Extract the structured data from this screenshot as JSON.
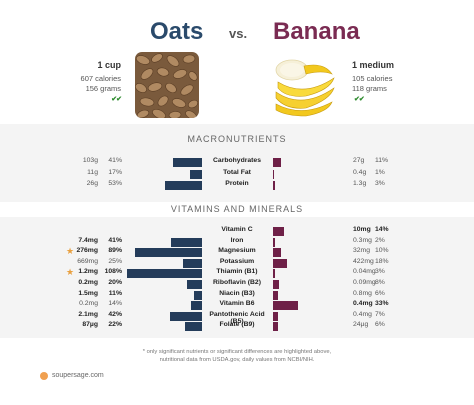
{
  "header": {
    "left_title": "Oats",
    "vs": "vs.",
    "right_title": "Banana"
  },
  "left_food": {
    "serving": "1 cup",
    "calories": "607 calories",
    "grams": "156 grams",
    "checks": "✔✔",
    "image_icon": "oats-image"
  },
  "right_food": {
    "serving": "1 medium",
    "calories": "105 calories",
    "grams": "118 grams",
    "checks": "✔✔",
    "image_icon": "banana-image"
  },
  "sections": {
    "macros_title": "MACRONUTRIENTS",
    "vitamins_title": "VITAMINS AND MINERALS"
  },
  "macros": [
    {
      "name": "Carbohydrates",
      "lv": "103g",
      "lp": "41%",
      "rv": "27g",
      "rp": "11%",
      "lfrac": 0.41,
      "rfrac": 0.11
    },
    {
      "name": "Total Fat",
      "lv": "11g",
      "lp": "17%",
      "rv": "0.4g",
      "rp": "1%",
      "lfrac": 0.17,
      "rfrac": 0.01
    },
    {
      "name": "Protein",
      "lv": "26g",
      "lp": "53%",
      "rv": "1.3g",
      "rp": "3%",
      "lfrac": 0.53,
      "rfrac": 0.03
    }
  ],
  "vitamins": [
    {
      "name": "Vitamin C",
      "lv": "",
      "lp": "",
      "rv": "10mg",
      "rp": "14%",
      "lfrac": 0,
      "rfrac": 0.14,
      "rbold": true
    },
    {
      "name": "Iron",
      "lv": "7.4mg",
      "lp": "41%",
      "rv": "0.3mg",
      "rp": "2%",
      "lfrac": 0.41,
      "rfrac": 0.02,
      "lbold": true
    },
    {
      "name": "Magnesium",
      "lv": "276mg",
      "lp": "89%",
      "rv": "32mg",
      "rp": "10%",
      "lfrac": 0.89,
      "rfrac": 0.1,
      "lbold": true,
      "star": true
    },
    {
      "name": "Potassium",
      "lv": "669mg",
      "lp": "25%",
      "rv": "422mg",
      "rp": "18%",
      "lfrac": 0.25,
      "rfrac": 0.18
    },
    {
      "name": "Thiamin (B1)",
      "lv": "1.2mg",
      "lp": "108%",
      "rv": "0.04mg",
      "rp": "3%",
      "lfrac": 1.0,
      "rfrac": 0.03,
      "lbold": true,
      "star": true
    },
    {
      "name": "Riboflavin (B2)",
      "lv": "0.2mg",
      "lp": "20%",
      "rv": "0.09mg",
      "rp": "8%",
      "lfrac": 0.2,
      "rfrac": 0.08,
      "lbold": true
    },
    {
      "name": "Niacin (B3)",
      "lv": "1.5mg",
      "lp": "11%",
      "rv": "0.8mg",
      "rp": "6%",
      "lfrac": 0.11,
      "rfrac": 0.06,
      "lbold": true
    },
    {
      "name": "Vitamin B6",
      "lv": "0.2mg",
      "lp": "14%",
      "rv": "0.4mg",
      "rp": "33%",
      "lfrac": 0.14,
      "rfrac": 0.33,
      "rbold": true
    },
    {
      "name": "Pantothenic Acid (B5)",
      "lv": "2.1mg",
      "lp": "42%",
      "rv": "0.4mg",
      "rp": "7%",
      "lfrac": 0.42,
      "rfrac": 0.07,
      "lbold": true
    },
    {
      "name": "Folate (B9)",
      "lv": "87µg",
      "lp": "22%",
      "rv": "24µg",
      "rp": "6%",
      "lfrac": 0.22,
      "rfrac": 0.06,
      "lbold": true
    }
  ],
  "notes": {
    "line1": "* only significant nutrients or significant differences are highlighted above,",
    "line2": "nutritional data from USDA.gov, daily values from NCBI/NIH."
  },
  "footer": {
    "site": "soupersage.com",
    "icon": "soupersage-logo-icon"
  },
  "colors": {
    "left_bar": "#243c5a",
    "right_bar": "#6e2047",
    "left_title": "#2a4a6b",
    "right_title": "#7a2b52",
    "star": "#e8a040",
    "check": "#2e8b2e"
  }
}
